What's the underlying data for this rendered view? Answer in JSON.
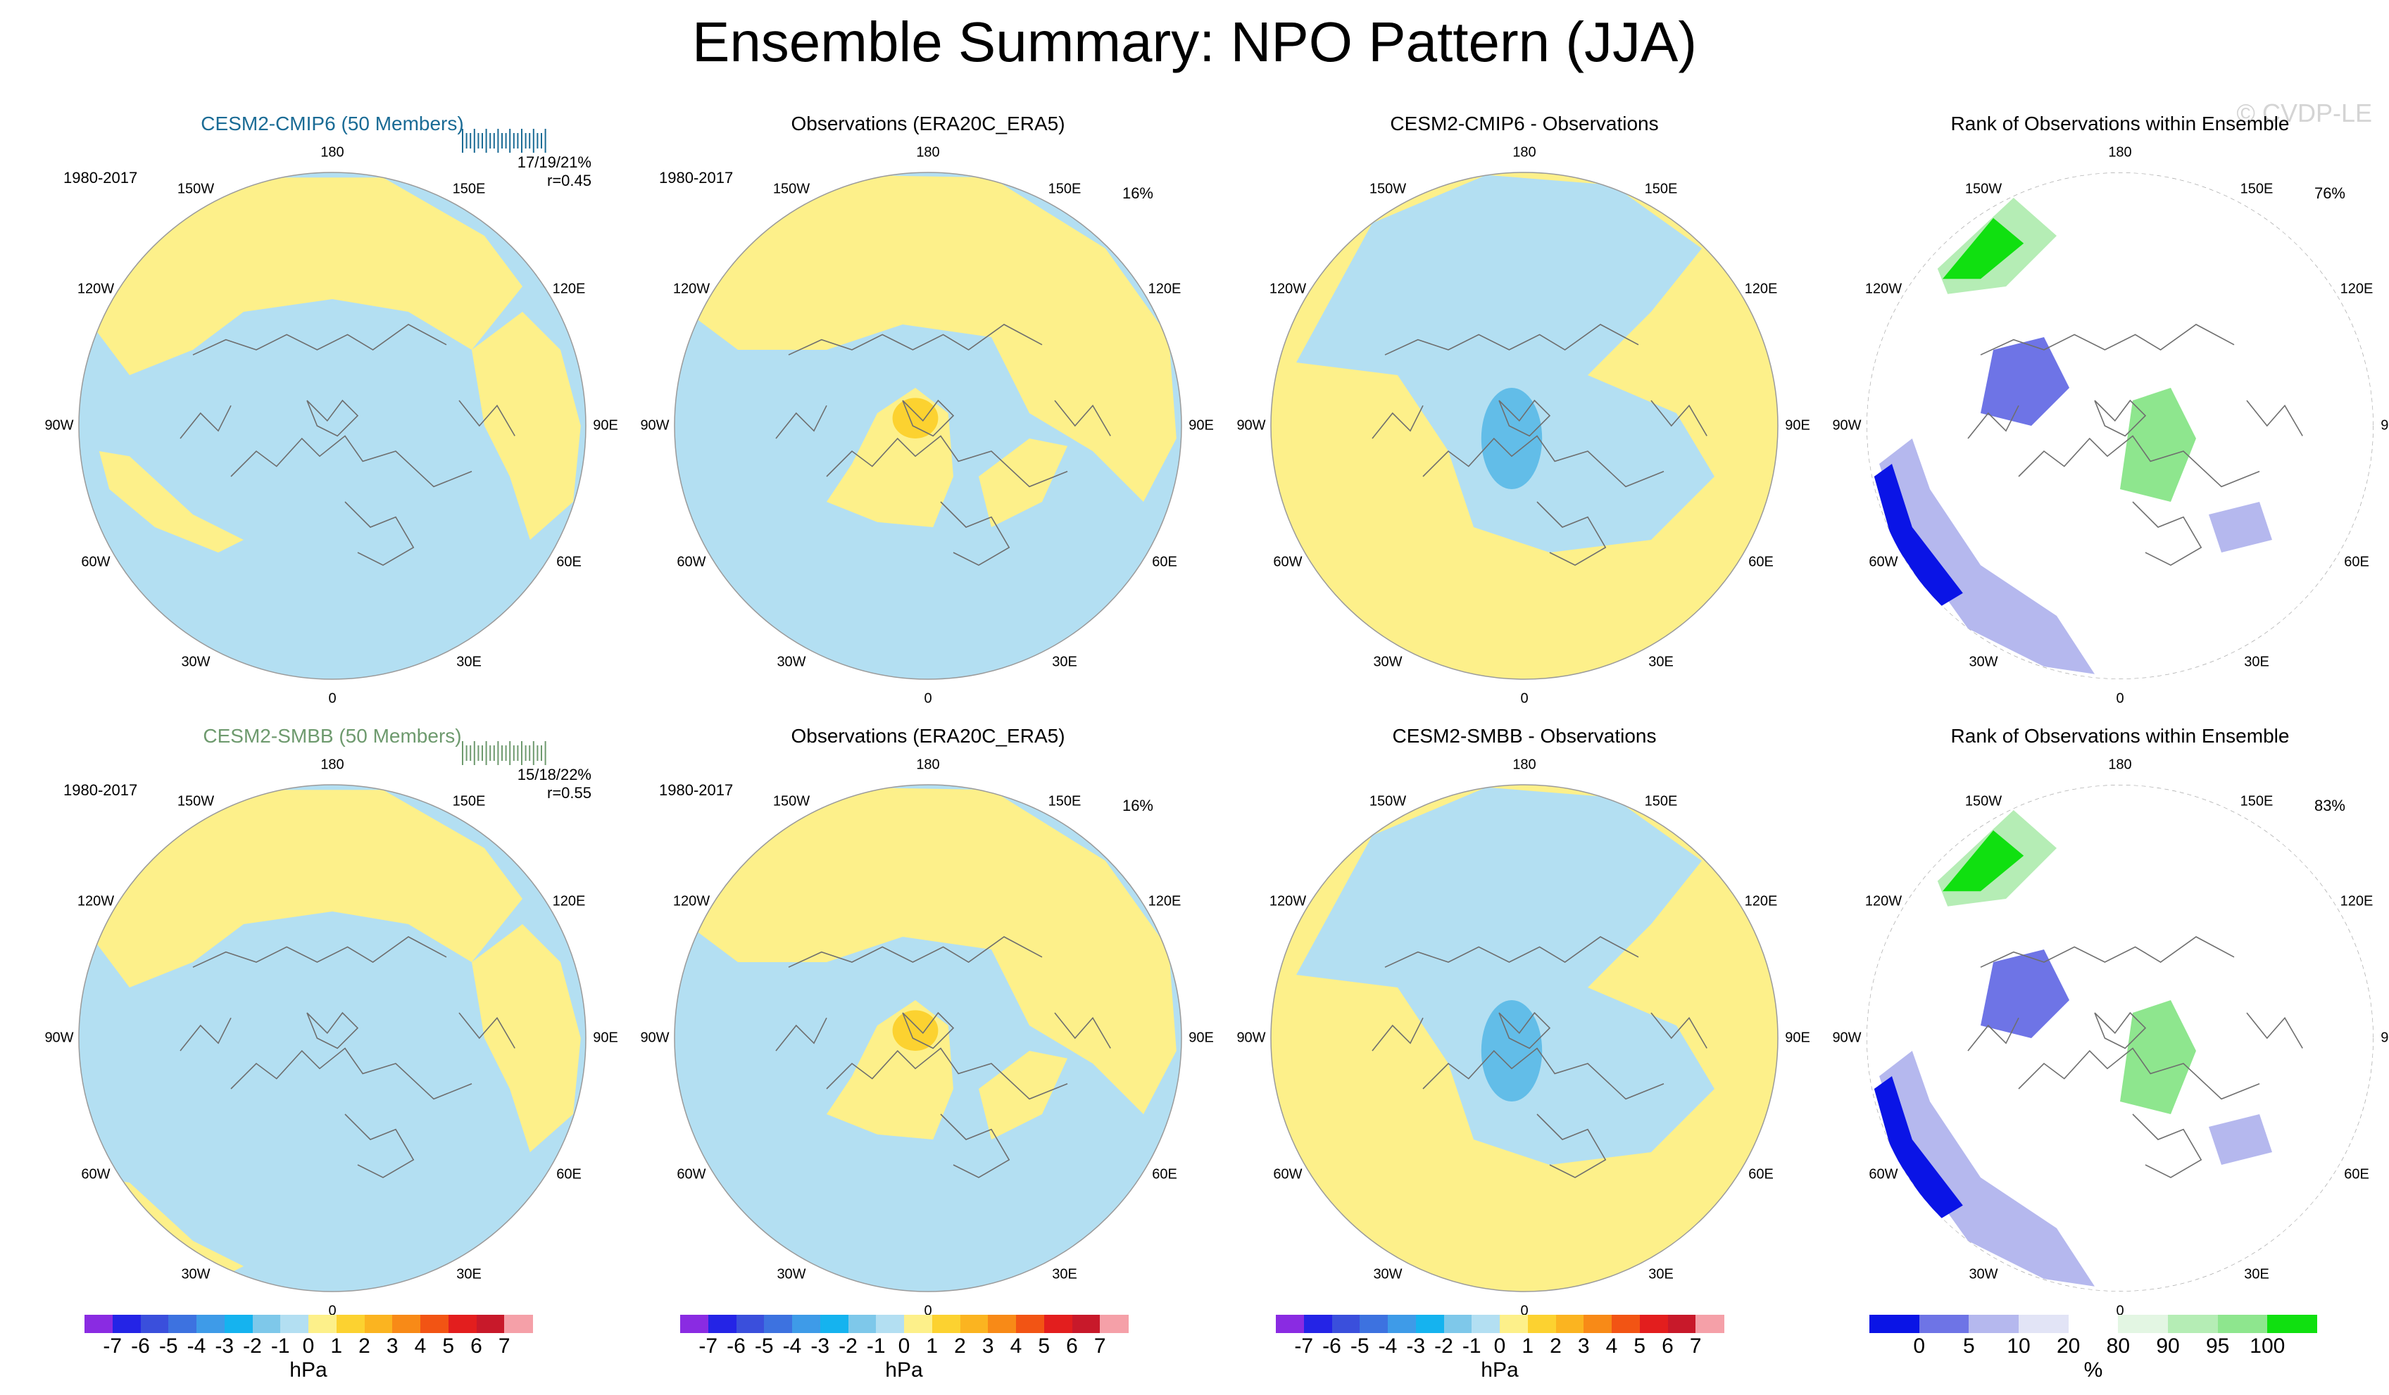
{
  "title": "Ensemble Summary: NPO Pattern (JJA)",
  "watermark": "© CVDP-LE",
  "colors": {
    "neg_fill": "#b3dff2",
    "pos_fill": "#fdf08a",
    "strong_pos": "#fcd230",
    "strong_neg": "#62bde8",
    "model1": "#1a6b95",
    "model2": "#6e9a6e",
    "land_line": "#6e6e6e"
  },
  "longitude_labels": [
    "180",
    "150E",
    "120E",
    "90E",
    "60E",
    "30E",
    "0",
    "30W",
    "60W",
    "90W",
    "120W",
    "150W"
  ],
  "rows": [
    {
      "model_title": "CESM2-CMIP6 (50 Members)",
      "period": "1980-2017",
      "stats_line1": "17/19/21%",
      "stats_line2": "r=0.45",
      "obs_title": "Observations (ERA20C_ERA5)",
      "obs_period": "1980-2017",
      "obs_pct": "16%",
      "diff_title": "CESM2-CMIP6 - Observations",
      "rank_title": "Rank of Observations within Ensemble",
      "rank_pct": "76%"
    },
    {
      "model_title": "CESM2-SMBB (50 Members)",
      "period": "1980-2017",
      "stats_line1": "15/18/22%",
      "stats_line2": "r=0.55",
      "obs_title": "Observations (ERA20C_ERA5)",
      "obs_period": "1980-2017",
      "obs_pct": "16%",
      "diff_title": "CESM2-SMBB - Observations",
      "rank_title": "Rank of Observations within Ensemble",
      "rank_pct": "83%"
    }
  ],
  "chart_data": {
    "type": "heatmap",
    "description_panels": "polar stereographic maps; sea level pressure pattern",
    "hpa_colorbar": {
      "unit": "hPa",
      "levels": [
        "-7",
        "-6",
        "-5",
        "-4",
        "-3",
        "-2",
        "-1",
        "0",
        "1",
        "2",
        "3",
        "4",
        "5",
        "6",
        "7"
      ],
      "colors": [
        "#8a2be2",
        "#2424e6",
        "#3a4fdc",
        "#3d72e0",
        "#3e9be8",
        "#15b3ef",
        "#7ec8ea",
        "#b3dff2",
        "#fdf08a",
        "#fcd230",
        "#fbb420",
        "#f88a17",
        "#f25414",
        "#e31e1e",
        "#c8192a",
        "#f5a0a8"
      ]
    },
    "rank_colorbar": {
      "unit": "%",
      "levels": [
        "0",
        "5",
        "10",
        "20",
        "80",
        "90",
        "95",
        "100"
      ],
      "colors": [
        "#0a14e6",
        "#6e74e6",
        "#b5b8ee",
        "#e2e4f6",
        "#ffffff",
        "#e3f6e3",
        "#b5edb5",
        "#8ee68e",
        "#10e010"
      ]
    }
  }
}
